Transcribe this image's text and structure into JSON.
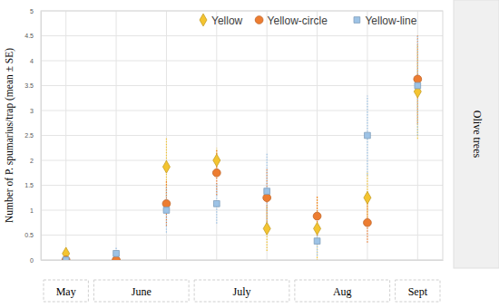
{
  "chart_data": {
    "type": "scatter",
    "y_label": "Number of P. spumarius/trap (mean ± SE)",
    "panel_label": "Olive trees",
    "categories": [
      null,
      null,
      null,
      null,
      null,
      null,
      null,
      null
    ],
    "month_groups": [
      {
        "label": "May",
        "from": 0,
        "to": 0
      },
      {
        "label": "June",
        "from": 1,
        "to": 2
      },
      {
        "label": "July",
        "from": 3,
        "to": 4
      },
      {
        "label": "Aug",
        "from": 5,
        "to": 6
      },
      {
        "label": "Sept",
        "from": 7,
        "to": 7
      }
    ],
    "series": [
      {
        "name": "Yellow",
        "color": "#f4c430",
        "marker": "diamond",
        "values": [
          0.13,
          0,
          1.87,
          2.0,
          0.63,
          0.63,
          1.25,
          3.38
        ],
        "errors": [
          0.13,
          0,
          0.6,
          0.25,
          0.45,
          0.65,
          0.5,
          0.95
        ]
      },
      {
        "name": "Yellow-circle",
        "color": "#ed7d31",
        "marker": "circle",
        "values": [
          0,
          0,
          1.13,
          1.75,
          1.25,
          0.88,
          0.75,
          3.63
        ],
        "errors": [
          0,
          0,
          0.45,
          0.45,
          0.6,
          0.4,
          0.4,
          0.9
        ]
      },
      {
        "name": "Yellow-line",
        "color": "#9dc3e6",
        "marker": "square",
        "values": [
          0,
          0.13,
          1.0,
          1.13,
          1.38,
          0.38,
          2.5,
          3.5
        ],
        "errors": [
          0,
          0.13,
          0.45,
          0.4,
          0.75,
          0.3,
          0.8,
          1.0
        ]
      }
    ],
    "ylim": [
      0,
      5
    ],
    "yticks": [
      0,
      0.5,
      1,
      1.5,
      2,
      2.5,
      3,
      3.5,
      4,
      4.5,
      5
    ],
    "grid": true,
    "legend": "upper right"
  }
}
